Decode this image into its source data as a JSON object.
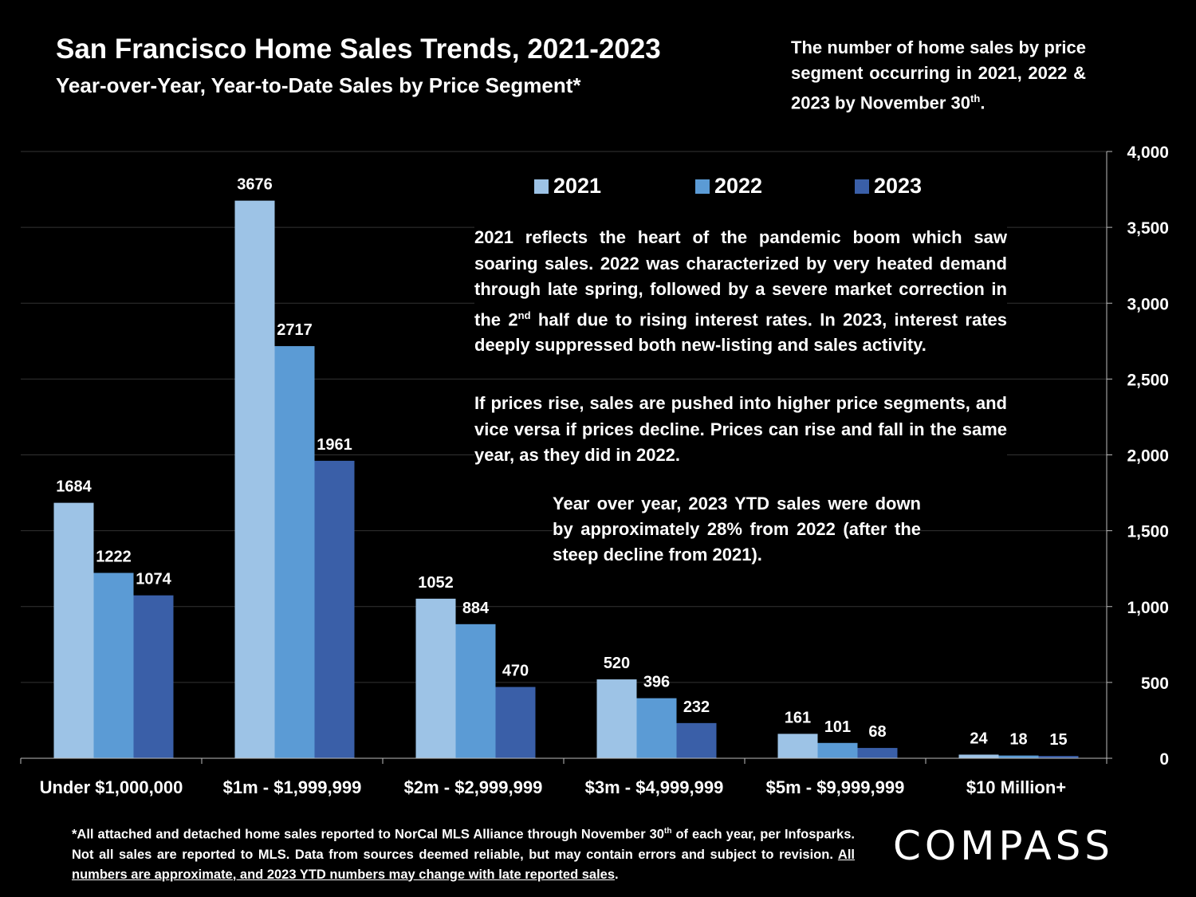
{
  "header": {
    "title": "San Francisco Home Sales Trends, 2021-2023",
    "subtitle": "Year-over-Year, Year-to-Date Sales by Price Segment*",
    "note_pre": "The number of home sales by price segment occurring in 2021, 2022 & 2023 by November 30",
    "note_sup": "th",
    "note_post": "."
  },
  "annotations": {
    "p1_a": "2021 reflects the heart of the pandemic boom which saw soaring sales. 2022 was characterized by very heated demand through late spring, followed by a severe market correction in the 2",
    "p1_sup": "nd",
    "p1_b": " half due to rising interest rates. In 2023, interest rates deeply suppressed both new-listing and sales activity.",
    "p2": "If prices rise, sales are pushed into higher price segments, and vice versa if prices decline. Prices can rise and fall in the same year, as they did in 2022.",
    "p3": "Year over year, 2023 YTD sales were down by approximately 28% from 2022 (after the steep decline from 2021)."
  },
  "footnote": {
    "a": "*All attached and detached home sales reported to NorCal MLS Alliance through November 30",
    "sup": "th",
    "b": " of each year, per Infosparks. Not all sales are reported to MLS. Data from sources deemed reliable, but may contain errors and subject to revision. ",
    "underlined": "All numbers are approximate, and 2023 YTD numbers may change with late reported sales",
    "c": "."
  },
  "logo": "COMPASS",
  "colors": {
    "s2021": "#9DC3E6",
    "s2022": "#5B9BD5",
    "s2023": "#3A5FA8",
    "grid": "#333333"
  },
  "chart_data": {
    "type": "bar",
    "categories": [
      "Under $1,000,000",
      "$1m - $1,999,999",
      "$2m - $2,999,999",
      "$3m - $4,999,999",
      "$5m - $9,999,999",
      "$10 Million+"
    ],
    "series": [
      {
        "name": "2021",
        "values": [
          1684,
          3676,
          1052,
          520,
          161,
          24
        ]
      },
      {
        "name": "2022",
        "values": [
          1222,
          2717,
          884,
          396,
          101,
          18
        ]
      },
      {
        "name": "2023",
        "values": [
          1074,
          1961,
          470,
          232,
          68,
          15
        ]
      }
    ],
    "ylim": [
      0,
      4000
    ],
    "yticks": [
      0,
      500,
      1000,
      1500,
      2000,
      2500,
      3000,
      3500,
      4000
    ],
    "ytick_labels": [
      "0",
      "500",
      "1,000",
      "1,500",
      "2,000",
      "2,500",
      "3,000",
      "3,500",
      "4,000"
    ],
    "y_axis_side": "right",
    "grid": true,
    "legend": "top-center"
  }
}
